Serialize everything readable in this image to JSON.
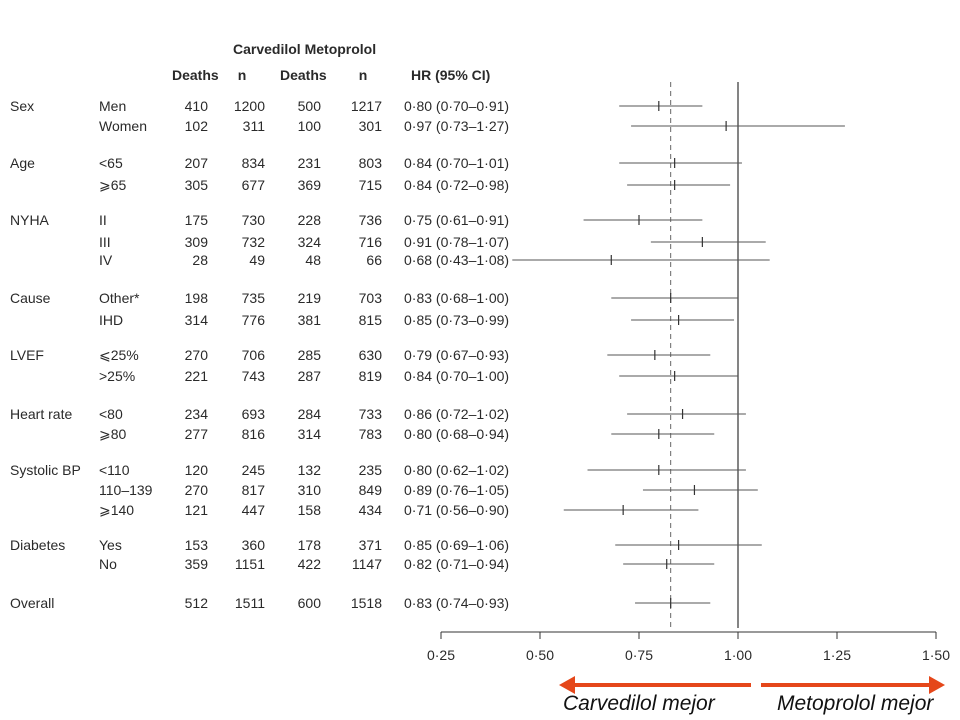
{
  "header": {
    "group_title": "Carvedilol Metoprolol",
    "col_deaths_1": "Deaths",
    "col_n_1": "n",
    "col_deaths_2": "Deaths",
    "col_n_2": "n",
    "col_hr": "HR (95% CI)"
  },
  "footer": {
    "left_label": "Carvedilol mejor",
    "right_label": "Metoprolol mejor",
    "arrow_color": "#e5471a"
  },
  "chart_data": {
    "type": "forest",
    "xlim": [
      0.25,
      1.5
    ],
    "x_ticks": [
      0.25,
      0.5,
      0.75,
      1.0,
      1.25,
      1.5
    ],
    "x_tick_labels": [
      "0·25",
      "0·50",
      "0·75",
      "1·00",
      "1·25",
      "1·50"
    ],
    "reference_line": 1.0,
    "overall_line": 0.83,
    "rows": [
      {
        "group": "Sex",
        "sub": "Men",
        "carv_deaths": "410",
        "carv_n": "1200",
        "meto_deaths": "500",
        "meto_n": "1217",
        "hr_text": "0·80 (0·70–0·91)",
        "hr": 0.8,
        "lo": 0.7,
        "hi": 0.91
      },
      {
        "group": "",
        "sub": "Women",
        "carv_deaths": "102",
        "carv_n": "311",
        "meto_deaths": "100",
        "meto_n": "301",
        "hr_text": "0·97 (0·73–1·27)",
        "hr": 0.97,
        "lo": 0.73,
        "hi": 1.27
      },
      {
        "group": "Age",
        "sub": "<65",
        "carv_deaths": "207",
        "carv_n": "834",
        "meto_deaths": "231",
        "meto_n": "803",
        "hr_text": "0·84 (0·70–1·01)",
        "hr": 0.84,
        "lo": 0.7,
        "hi": 1.01
      },
      {
        "group": "",
        "sub": "⩾65",
        "carv_deaths": "305",
        "carv_n": "677",
        "meto_deaths": "369",
        "meto_n": "715",
        "hr_text": "0·84 (0·72–0·98)",
        "hr": 0.84,
        "lo": 0.72,
        "hi": 0.98
      },
      {
        "group": "NYHA",
        "sub": "II",
        "carv_deaths": "175",
        "carv_n": "730",
        "meto_deaths": "228",
        "meto_n": "736",
        "hr_text": "0·75 (0·61–0·91)",
        "hr": 0.75,
        "lo": 0.61,
        "hi": 0.91
      },
      {
        "group": "",
        "sub": "III",
        "carv_deaths": "309",
        "carv_n": "732",
        "meto_deaths": "324",
        "meto_n": "716",
        "hr_text": "0·91 (0·78–1·07)",
        "hr": 0.91,
        "lo": 0.78,
        "hi": 1.07
      },
      {
        "group": "",
        "sub": "IV",
        "carv_deaths": "28",
        "carv_n": "49",
        "meto_deaths": "48",
        "meto_n": "66",
        "hr_text": "0·68 (0·43–1·08)",
        "hr": 0.68,
        "lo": 0.43,
        "hi": 1.08
      },
      {
        "group": "Cause",
        "sub": "Other*",
        "carv_deaths": "198",
        "carv_n": "735",
        "meto_deaths": "219",
        "meto_n": "703",
        "hr_text": "0·83 (0·68–1·00)",
        "hr": 0.83,
        "lo": 0.68,
        "hi": 1.0
      },
      {
        "group": "",
        "sub": "IHD",
        "carv_deaths": "314",
        "carv_n": "776",
        "meto_deaths": "381",
        "meto_n": "815",
        "hr_text": "0·85 (0·73–0·99)",
        "hr": 0.85,
        "lo": 0.73,
        "hi": 0.99
      },
      {
        "group": "LVEF",
        "sub": "⩽25%",
        "carv_deaths": "270",
        "carv_n": "706",
        "meto_deaths": "285",
        "meto_n": "630",
        "hr_text": "0·79 (0·67–0·93)",
        "hr": 0.79,
        "lo": 0.67,
        "hi": 0.93
      },
      {
        "group": "",
        "sub": ">25%",
        "carv_deaths": "221",
        "carv_n": "743",
        "meto_deaths": "287",
        "meto_n": "819",
        "hr_text": "0·84 (0·70–1·00)",
        "hr": 0.84,
        "lo": 0.7,
        "hi": 1.0
      },
      {
        "group": "Heart rate",
        "sub": "<80",
        "carv_deaths": "234",
        "carv_n": "693",
        "meto_deaths": "284",
        "meto_n": "733",
        "hr_text": "0·86 (0·72–1·02)",
        "hr": 0.86,
        "lo": 0.72,
        "hi": 1.02
      },
      {
        "group": "",
        "sub": "⩾80",
        "carv_deaths": "277",
        "carv_n": "816",
        "meto_deaths": "314",
        "meto_n": "783",
        "hr_text": "0·80 (0·68–0·94)",
        "hr": 0.8,
        "lo": 0.68,
        "hi": 0.94
      },
      {
        "group": "Systolic BP",
        "sub": "<110",
        "carv_deaths": "120",
        "carv_n": "245",
        "meto_deaths": "132",
        "meto_n": "235",
        "hr_text": "0·80 (0·62–1·02)",
        "hr": 0.8,
        "lo": 0.62,
        "hi": 1.02
      },
      {
        "group": "",
        "sub": "110–139",
        "carv_deaths": "270",
        "carv_n": "817",
        "meto_deaths": "310",
        "meto_n": "849",
        "hr_text": "0·89 (0·76–1·05)",
        "hr": 0.89,
        "lo": 0.76,
        "hi": 1.05
      },
      {
        "group": "",
        "sub": "⩾140",
        "carv_deaths": "121",
        "carv_n": "447",
        "meto_deaths": "158",
        "meto_n": "434",
        "hr_text": "0·71 (0·56–0·90)",
        "hr": 0.71,
        "lo": 0.56,
        "hi": 0.9
      },
      {
        "group": "Diabetes",
        "sub": "Yes",
        "carv_deaths": "153",
        "carv_n": "360",
        "meto_deaths": "178",
        "meto_n": "371",
        "hr_text": "0·85 (0·69–1·06)",
        "hr": 0.85,
        "lo": 0.69,
        "hi": 1.06
      },
      {
        "group": "",
        "sub": "No",
        "carv_deaths": "359",
        "carv_n": "1151",
        "meto_deaths": "422",
        "meto_n": "1147",
        "hr_text": "0·82 (0·71–0·94)",
        "hr": 0.82,
        "lo": 0.71,
        "hi": 0.94
      },
      {
        "group": "Overall",
        "sub": "",
        "carv_deaths": "512",
        "carv_n": "1511",
        "meto_deaths": "600",
        "meto_n": "1518",
        "hr_text": "0·83 (0·74–0·93)",
        "hr": 0.83,
        "lo": 0.74,
        "hi": 0.93
      }
    ]
  }
}
